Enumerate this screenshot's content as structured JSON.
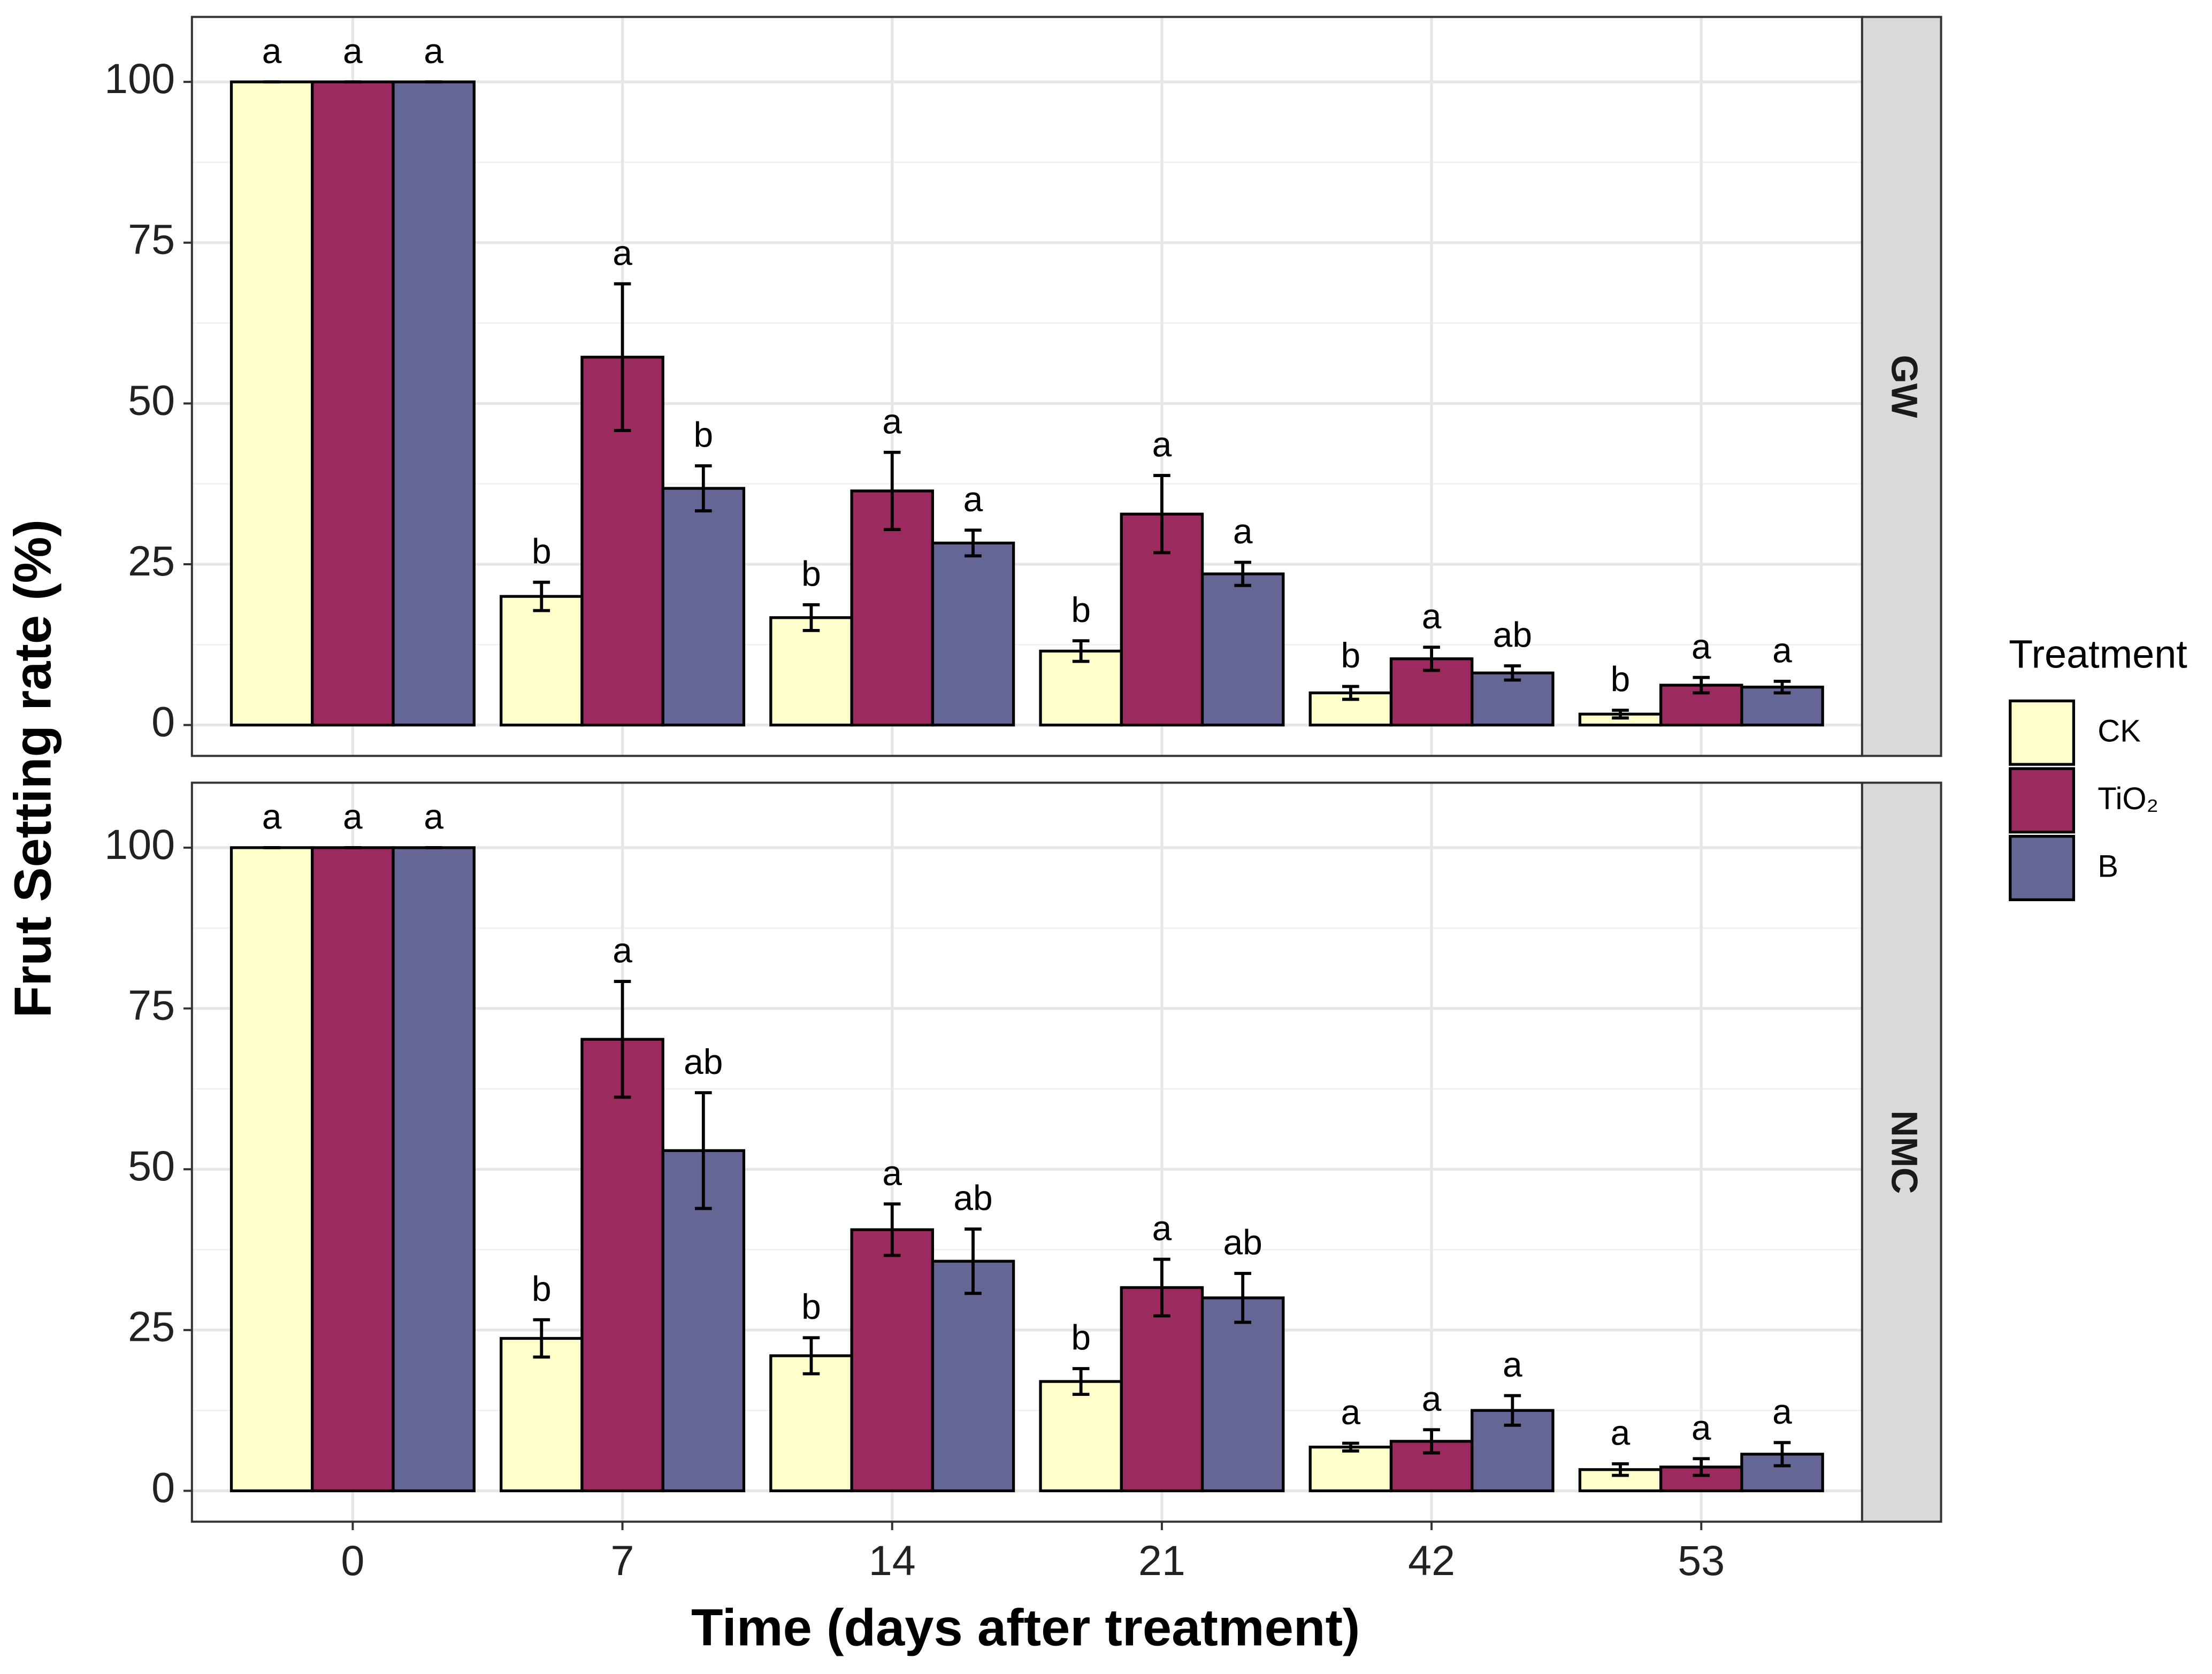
{
  "chart_data": {
    "type": "bar",
    "xlabel": "Time (days after treatment)",
    "ylabel": "Frut Setting rate (%)",
    "legend_title": "Treatment",
    "legend_position": "right",
    "categories": [
      "0",
      "7",
      "14",
      "21",
      "42",
      "53"
    ],
    "ylim": [
      -4.8,
      110.1
    ],
    "yticks": [
      0,
      25,
      50,
      75,
      100
    ],
    "minor_yticks": [
      12.5,
      37.5,
      62.5,
      87.5
    ],
    "grid": true,
    "facets": [
      {
        "label": "GW",
        "series": [
          {
            "name": "CK",
            "color": "#ffffcc",
            "values": [
              100,
              20,
              16.7,
              11.5,
              5,
              1.7
            ],
            "errors": [
              0,
              2.2,
              2,
              1.6,
              1,
              0.6
            ],
            "letters": [
              "a",
              "b",
              "b",
              "b",
              "b",
              "b"
            ]
          },
          {
            "name": "TiO₂",
            "color": "#9b2b5e",
            "values": [
              100,
              57.2,
              36.4,
              32.8,
              10.3,
              6.2
            ],
            "errors": [
              0,
              11.4,
              6,
              6,
              1.8,
              1.2
            ],
            "letters": [
              "a",
              "a",
              "a",
              "a",
              "a",
              "a"
            ]
          },
          {
            "name": "B",
            "color": "#656596",
            "values": [
              100,
              36.8,
              28.3,
              23.5,
              8.1,
              5.9
            ],
            "errors": [
              0,
              3.5,
              2,
              1.8,
              1.1,
              0.9
            ],
            "letters": [
              "a",
              "b",
              "a",
              "a",
              "ab",
              "a"
            ]
          }
        ]
      },
      {
        "label": "NMC",
        "series": [
          {
            "name": "CK",
            "color": "#ffffcc",
            "values": [
              100,
              23.7,
              21,
              17,
              6.8,
              3.3
            ],
            "errors": [
              0,
              2.9,
              2.8,
              2,
              0.6,
              0.9
            ],
            "letters": [
              "a",
              "b",
              "b",
              "b",
              "a",
              "a"
            ]
          },
          {
            "name": "TiO₂",
            "color": "#9b2b5e",
            "values": [
              100,
              70.2,
              40.6,
              31.6,
              7.7,
              3.7
            ],
            "errors": [
              0,
              9,
              4,
              4.4,
              1.8,
              1.3
            ],
            "letters": [
              "a",
              "a",
              "a",
              "a",
              "a",
              "a"
            ]
          },
          {
            "name": "B",
            "color": "#656596",
            "values": [
              100,
              52.9,
              35.7,
              30,
              12.5,
              5.7
            ],
            "errors": [
              0,
              9,
              5,
              3.8,
              2.3,
              1.8
            ],
            "letters": [
              "a",
              "ab",
              "ab",
              "ab",
              "a",
              "a"
            ]
          }
        ]
      }
    ]
  }
}
